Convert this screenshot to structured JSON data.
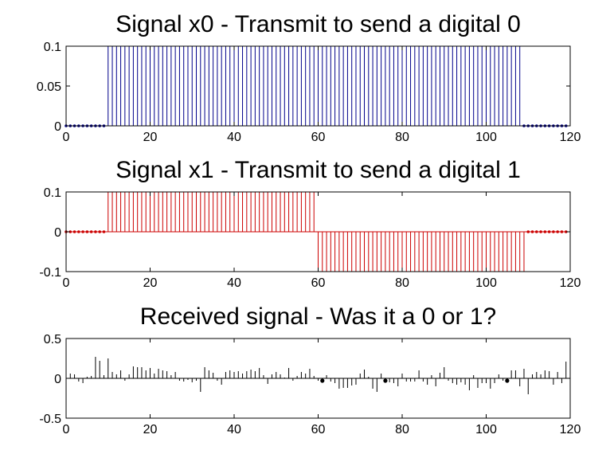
{
  "chart_data": [
    {
      "type": "stem",
      "title": "Signal x0 - Transmit to send a digital 0",
      "xlim": [
        0,
        120
      ],
      "ylim": [
        0,
        0.1
      ],
      "xticks": [
        0,
        20,
        40,
        60,
        80,
        100,
        120
      ],
      "yticks": [
        0,
        0.05,
        0.1
      ],
      "xtick_labels": [
        "0",
        "20",
        "40",
        "60",
        "80",
        "100",
        "120"
      ],
      "ytick_labels": [
        "0",
        "0.05",
        "0.1"
      ],
      "color": "#00008b",
      "x": [
        0,
        1,
        2,
        3,
        4,
        5,
        6,
        7,
        8,
        9,
        10,
        11,
        12,
        13,
        14,
        15,
        16,
        17,
        18,
        19,
        20,
        21,
        22,
        23,
        24,
        25,
        26,
        27,
        28,
        29,
        30,
        31,
        32,
        33,
        34,
        35,
        36,
        37,
        38,
        39,
        40,
        41,
        42,
        43,
        44,
        45,
        46,
        47,
        48,
        49,
        50,
        51,
        52,
        53,
        54,
        55,
        56,
        57,
        58,
        59,
        60,
        61,
        62,
        63,
        64,
        65,
        66,
        67,
        68,
        69,
        70,
        71,
        72,
        73,
        74,
        75,
        76,
        77,
        78,
        79,
        80,
        81,
        82,
        83,
        84,
        85,
        86,
        87,
        88,
        89,
        90,
        91,
        92,
        93,
        94,
        95,
        96,
        97,
        98,
        99,
        100,
        101,
        102,
        103,
        104,
        105,
        106,
        107,
        108,
        109,
        110,
        111,
        112,
        113,
        114,
        115,
        116,
        117,
        118,
        119
      ],
      "values": [
        0,
        0,
        0,
        0,
        0,
        0,
        0,
        0,
        0,
        0,
        0.1,
        0.1,
        0.1,
        0.1,
        0.1,
        0.1,
        0.1,
        0.1,
        0.1,
        0.1,
        0.1,
        0.1,
        0.1,
        0.1,
        0.1,
        0.1,
        0.1,
        0.1,
        0.1,
        0.1,
        0.1,
        0.1,
        0.1,
        0.1,
        0.1,
        0.1,
        0.1,
        0.1,
        0.1,
        0.1,
        0.1,
        0.1,
        0.1,
        0.1,
        0.1,
        0.1,
        0.1,
        0.1,
        0.1,
        0.1,
        0.1,
        0.1,
        0.1,
        0.1,
        0.1,
        0.1,
        0.1,
        0.1,
        0.1,
        0.1,
        0.1,
        0.1,
        0.1,
        0.1,
        0.1,
        0.1,
        0.1,
        0.1,
        0.1,
        0.1,
        0.1,
        0.1,
        0.1,
        0.1,
        0.1,
        0.1,
        0.1,
        0.1,
        0.1,
        0.1,
        0.1,
        0.1,
        0.1,
        0.1,
        0.1,
        0.1,
        0.1,
        0.1,
        0.1,
        0.1,
        0.1,
        0.1,
        0.1,
        0.1,
        0.1,
        0.1,
        0.1,
        0.1,
        0.1,
        0.1,
        0.1,
        0.1,
        0.1,
        0.1,
        0.1,
        0.1,
        0.1,
        0.1,
        0.1,
        0,
        0,
        0,
        0,
        0,
        0,
        0,
        0,
        0,
        0,
        0
      ]
    },
    {
      "type": "stem",
      "title": "Signal x1 - Transmit to send a digital 1",
      "xlim": [
        0,
        120
      ],
      "ylim": [
        -0.1,
        0.1
      ],
      "xticks": [
        0,
        20,
        40,
        60,
        80,
        100,
        120
      ],
      "yticks": [
        -0.1,
        0,
        0.1
      ],
      "xtick_labels": [
        "0",
        "20",
        "40",
        "60",
        "80",
        "100",
        "120"
      ],
      "ytick_labels": [
        "-0.1",
        "0",
        "0.1"
      ],
      "color": "#cc0000",
      "x": [
        0,
        1,
        2,
        3,
        4,
        5,
        6,
        7,
        8,
        9,
        10,
        11,
        12,
        13,
        14,
        15,
        16,
        17,
        18,
        19,
        20,
        21,
        22,
        23,
        24,
        25,
        26,
        27,
        28,
        29,
        30,
        31,
        32,
        33,
        34,
        35,
        36,
        37,
        38,
        39,
        40,
        41,
        42,
        43,
        44,
        45,
        46,
        47,
        48,
        49,
        50,
        51,
        52,
        53,
        54,
        55,
        56,
        57,
        58,
        59,
        60,
        61,
        62,
        63,
        64,
        65,
        66,
        67,
        68,
        69,
        70,
        71,
        72,
        73,
        74,
        75,
        76,
        77,
        78,
        79,
        80,
        81,
        82,
        83,
        84,
        85,
        86,
        87,
        88,
        89,
        90,
        91,
        92,
        93,
        94,
        95,
        96,
        97,
        98,
        99,
        100,
        101,
        102,
        103,
        104,
        105,
        106,
        107,
        108,
        109,
        110,
        111,
        112,
        113,
        114,
        115,
        116,
        117,
        118,
        119
      ],
      "values": [
        0,
        0,
        0,
        0,
        0,
        0,
        0,
        0,
        0,
        0,
        0.1,
        0.1,
        0.1,
        0.1,
        0.1,
        0.1,
        0.1,
        0.1,
        0.1,
        0.1,
        0.1,
        0.1,
        0.1,
        0.1,
        0.1,
        0.1,
        0.1,
        0.1,
        0.1,
        0.1,
        0.1,
        0.1,
        0.1,
        0.1,
        0.1,
        0.1,
        0.1,
        0.1,
        0.1,
        0.1,
        0.1,
        0.1,
        0.1,
        0.1,
        0.1,
        0.1,
        0.1,
        0.1,
        0.1,
        0.1,
        0.1,
        0.1,
        0.1,
        0.1,
        0.1,
        0.1,
        0.1,
        0.1,
        0.1,
        0.1,
        -0.1,
        -0.1,
        -0.1,
        -0.1,
        -0.1,
        -0.1,
        -0.1,
        -0.1,
        -0.1,
        -0.1,
        -0.1,
        -0.1,
        -0.1,
        -0.1,
        -0.1,
        -0.1,
        -0.1,
        -0.1,
        -0.1,
        -0.1,
        -0.1,
        -0.1,
        -0.1,
        -0.1,
        -0.1,
        -0.1,
        -0.1,
        -0.1,
        -0.1,
        -0.1,
        -0.1,
        -0.1,
        -0.1,
        -0.1,
        -0.1,
        -0.1,
        -0.1,
        -0.1,
        -0.1,
        -0.1,
        -0.1,
        -0.1,
        -0.1,
        -0.1,
        -0.1,
        -0.1,
        -0.1,
        -0.1,
        -0.1,
        -0.1,
        0,
        0,
        0,
        0,
        0,
        0,
        0,
        0,
        0,
        0
      ]
    },
    {
      "type": "stem",
      "title": "Received signal - Was it a 0 or 1?",
      "xlim": [
        0,
        120
      ],
      "ylim": [
        -0.5,
        0.5
      ],
      "xticks": [
        0,
        20,
        40,
        60,
        80,
        100,
        120
      ],
      "yticks": [
        -0.5,
        0,
        0.5
      ],
      "xtick_labels": [
        "0",
        "20",
        "40",
        "60",
        "80",
        "100",
        "120"
      ],
      "ytick_labels": [
        "-0.5",
        "0",
        "0.5"
      ],
      "color": "#000000",
      "x": [
        0,
        1,
        2,
        3,
        4,
        5,
        6,
        7,
        8,
        9,
        10,
        11,
        12,
        13,
        14,
        15,
        16,
        17,
        18,
        19,
        20,
        21,
        22,
        23,
        24,
        25,
        26,
        27,
        28,
        29,
        30,
        31,
        32,
        33,
        34,
        35,
        36,
        37,
        38,
        39,
        40,
        41,
        42,
        43,
        44,
        45,
        46,
        47,
        48,
        49,
        50,
        51,
        52,
        53,
        54,
        55,
        56,
        57,
        58,
        59,
        60,
        61,
        62,
        63,
        64,
        65,
        66,
        67,
        68,
        69,
        70,
        71,
        72,
        73,
        74,
        75,
        76,
        77,
        78,
        79,
        80,
        81,
        82,
        83,
        84,
        85,
        86,
        87,
        88,
        89,
        90,
        91,
        92,
        93,
        94,
        95,
        96,
        97,
        98,
        99,
        100,
        101,
        102,
        103,
        104,
        105,
        106,
        107,
        108,
        109,
        110,
        111,
        112,
        113,
        114,
        115,
        116,
        117,
        118,
        119
      ],
      "values": [
        -0.17,
        0.06,
        0.05,
        -0.04,
        -0.06,
        0.02,
        0.03,
        0.27,
        0.22,
        0.04,
        0.25,
        0.08,
        0.05,
        0.1,
        -0.03,
        0.05,
        0.15,
        0.14,
        0.14,
        0.1,
        0.13,
        0.06,
        0.12,
        0.1,
        0.09,
        0.04,
        0.08,
        -0.03,
        -0.04,
        -0.02,
        -0.05,
        -0.03,
        -0.17,
        0.14,
        0.1,
        0.07,
        -0.03,
        -0.08,
        0.08,
        0.1,
        0.08,
        0.09,
        0.06,
        0.09,
        0.11,
        0.09,
        0.13,
        0.04,
        -0.07,
        0.05,
        0.08,
        0.05,
        0.01,
        0.13,
        -0.03,
        0.03,
        0.08,
        0.06,
        0.12,
        0.03,
        -0.03,
        -0.03,
        0.04,
        -0.04,
        -0.06,
        -0.13,
        -0.12,
        -0.12,
        -0.09,
        -0.08,
        0.06,
        0.11,
        0.02,
        -0.13,
        -0.17,
        0.06,
        -0.03,
        -0.05,
        -0.06,
        -0.1,
        0.06,
        -0.04,
        -0.04,
        -0.04,
        0.1,
        -0.04,
        -0.08,
        0.04,
        -0.1,
        0.07,
        0.14,
        -0.03,
        -0.06,
        -0.08,
        -0.05,
        -0.08,
        -0.15,
        0.04,
        -0.12,
        -0.06,
        -0.06,
        -0.13,
        -0.06,
        0.05,
        -0.03,
        -0.03,
        0.1,
        0.1,
        -0.1,
        0.12,
        -0.2,
        0.05,
        0.08,
        0.05,
        0.1,
        0.09,
        -0.08,
        0.08,
        -0.06,
        0.21
      ],
      "markers_at": [
        61,
        76,
        105
      ]
    }
  ]
}
